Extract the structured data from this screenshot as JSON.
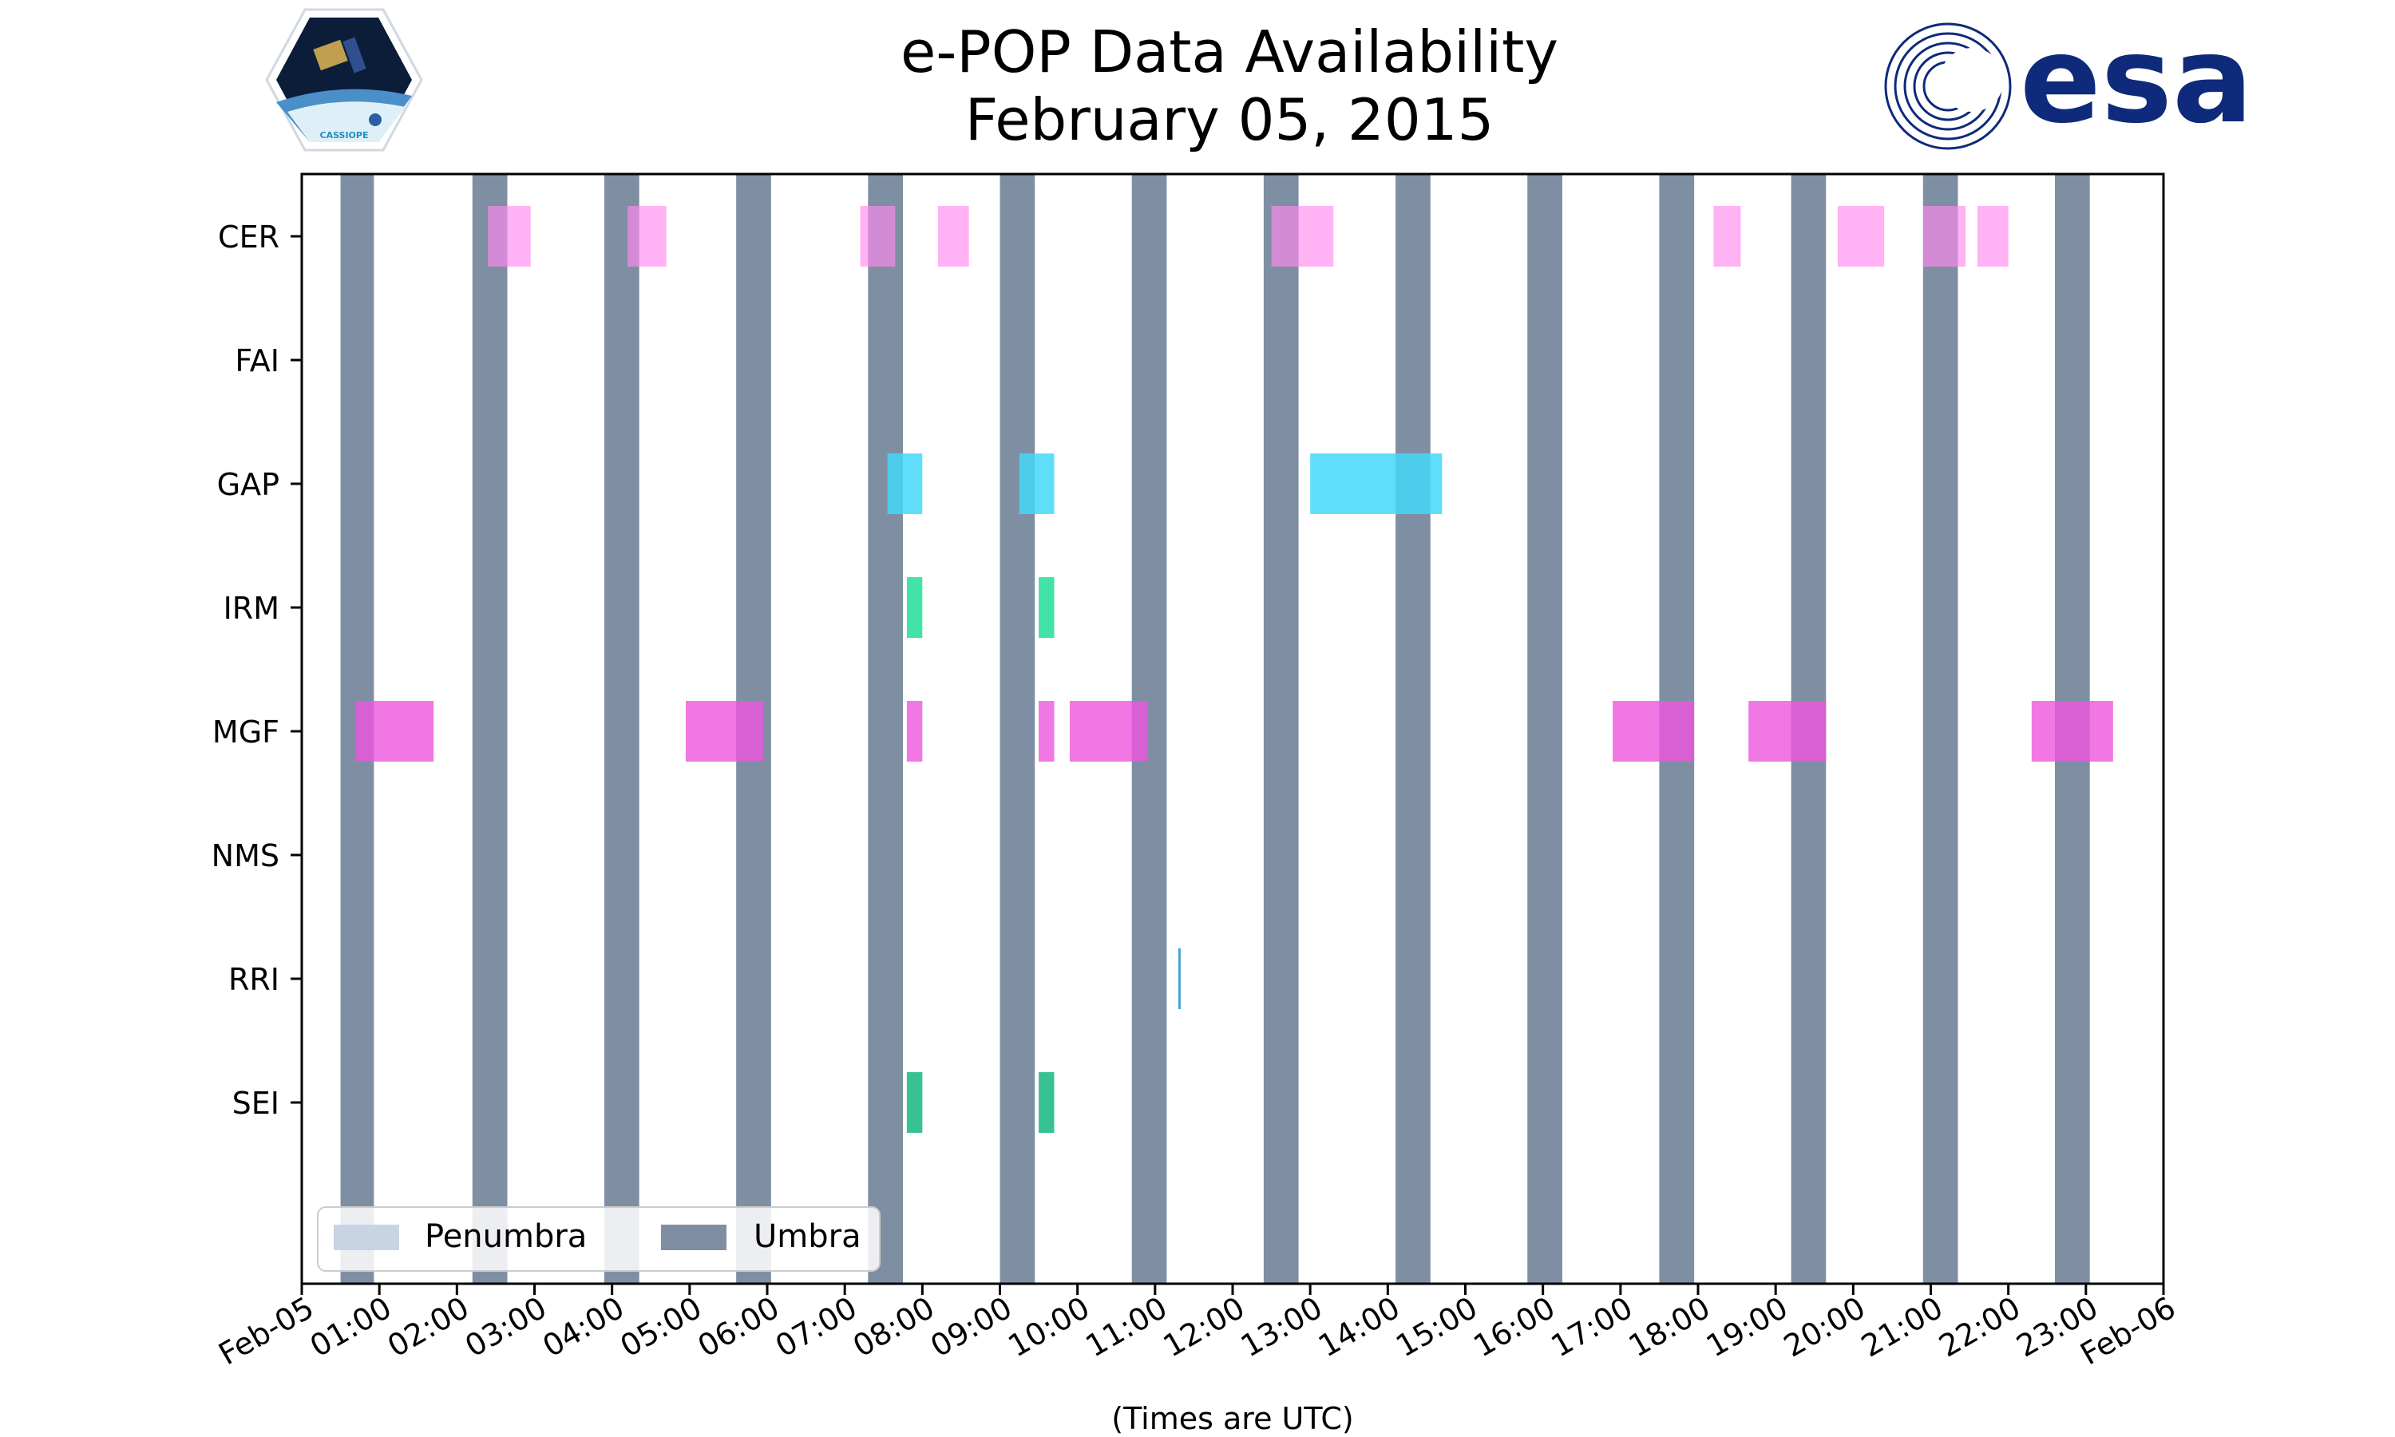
{
  "chart_data": {
    "type": "timeline",
    "title": "e-POP Data Availability",
    "subtitle": "February 05, 2015",
    "xlabel": "(Times are UTC)",
    "x_range_hours": [
      0,
      24
    ],
    "x_ticks": [
      "Feb-05",
      "01:00",
      "02:00",
      "03:00",
      "04:00",
      "05:00",
      "06:00",
      "07:00",
      "08:00",
      "09:00",
      "10:00",
      "11:00",
      "12:00",
      "13:00",
      "14:00",
      "15:00",
      "16:00",
      "17:00",
      "18:00",
      "19:00",
      "20:00",
      "21:00",
      "22:00",
      "23:00",
      "Feb-06"
    ],
    "instruments": [
      "CER",
      "FAI",
      "GAP",
      "IRM",
      "MGF",
      "NMS",
      "RRI",
      "SEI"
    ],
    "umbra_intervals": [
      [
        0.5,
        0.93
      ],
      [
        2.2,
        2.65
      ],
      [
        3.9,
        4.35
      ],
      [
        5.6,
        6.05
      ],
      [
        7.3,
        7.75
      ],
      [
        9.0,
        9.45
      ],
      [
        10.7,
        11.15
      ],
      [
        12.4,
        12.85
      ],
      [
        14.1,
        14.55
      ],
      [
        15.8,
        16.25
      ],
      [
        17.5,
        17.95
      ],
      [
        19.2,
        19.65
      ],
      [
        20.9,
        21.35
      ],
      [
        22.6,
        23.05
      ]
    ],
    "series": [
      {
        "name": "CER",
        "color": "#ff88ee",
        "opacity": 0.65,
        "intervals": [
          [
            2.4,
            2.95
          ],
          [
            4.2,
            4.7
          ],
          [
            7.2,
            7.65
          ],
          [
            8.2,
            8.6
          ],
          [
            12.5,
            13.3
          ],
          [
            18.2,
            18.55
          ],
          [
            19.8,
            20.4
          ],
          [
            20.9,
            21.45
          ],
          [
            21.6,
            22.0
          ]
        ]
      },
      {
        "name": "FAI",
        "color": "#66bbdd",
        "opacity": 0.8,
        "intervals": []
      },
      {
        "name": "GAP",
        "color": "#44d8f8",
        "opacity": 0.85,
        "intervals": [
          [
            7.55,
            8.0
          ],
          [
            9.25,
            9.7
          ],
          [
            13.0,
            14.7
          ]
        ]
      },
      {
        "name": "IRM",
        "color": "#22dd99",
        "opacity": 0.85,
        "intervals": [
          [
            7.8,
            8.0
          ],
          [
            9.5,
            9.7
          ]
        ]
      },
      {
        "name": "MGF",
        "color": "#ee55dd",
        "opacity": 0.8,
        "intervals": [
          [
            0.7,
            1.7
          ],
          [
            4.95,
            5.95
          ],
          [
            7.8,
            8.0
          ],
          [
            9.5,
            9.7
          ],
          [
            9.9,
            10.9
          ],
          [
            16.9,
            17.95
          ],
          [
            18.65,
            19.65
          ],
          [
            22.3,
            23.35
          ]
        ]
      },
      {
        "name": "NMS",
        "color": "#66bbdd",
        "opacity": 0.8,
        "intervals": []
      },
      {
        "name": "RRI",
        "color": "#3399cc",
        "opacity": 0.9,
        "intervals": [
          [
            11.3,
            11.33
          ]
        ]
      },
      {
        "name": "SEI",
        "color": "#22bb88",
        "opacity": 0.9,
        "intervals": [
          [
            7.8,
            8.0
          ],
          [
            9.5,
            9.7
          ]
        ]
      }
    ],
    "legend": {
      "placement": "lower-left",
      "entries": [
        {
          "label": "Penumbra",
          "color": "#c8d4e4"
        },
        {
          "label": "Umbra",
          "color": "#7f8fa3"
        }
      ]
    },
    "umbra_color": "#7f8fa3"
  },
  "logos": {
    "left_text": "CASSIOPE",
    "right_text": "esa",
    "esa_color": "#0f2a7a",
    "cassiope_color": "#1f8fc0"
  }
}
